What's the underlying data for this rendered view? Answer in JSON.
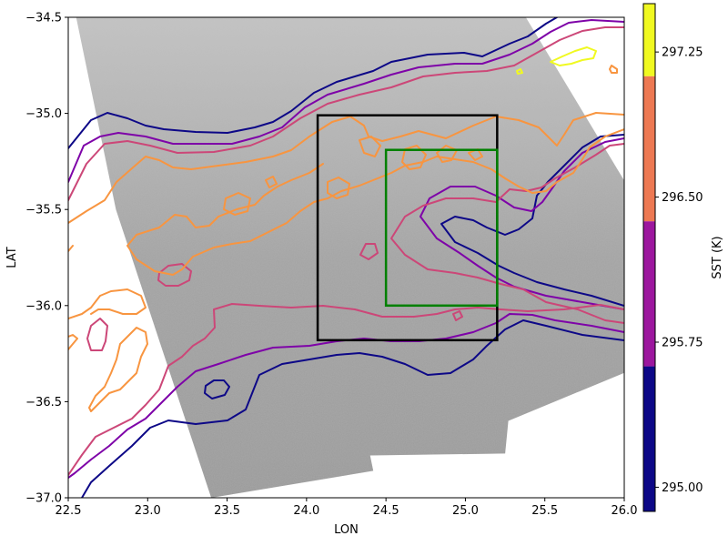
{
  "chart_data": {
    "type": "contour",
    "background": "grayscale SAR image",
    "xlabel": "LON",
    "ylabel": "LAT",
    "xlim": [
      22.5,
      26.0
    ],
    "ylim": [
      -37.0,
      -34.5
    ],
    "xticks": [
      "22.5",
      "23.0",
      "23.5",
      "24.0",
      "24.5",
      "25.0",
      "25.5",
      "26.0"
    ],
    "yticks": [
      "-34.5",
      "-35.0",
      "-35.5",
      "-36.0",
      "-36.5",
      "-37.0"
    ],
    "colorbar": {
      "label": "SST (K)",
      "ticks": [
        "295.00",
        "295.75",
        "296.50",
        "297.25"
      ],
      "levels": [
        294.875,
        295.0,
        295.25,
        295.5,
        295.75,
        296.0,
        296.25,
        296.5,
        296.75,
        297.0,
        297.25,
        297.5
      ]
    },
    "contour_levels": [
      {
        "level": 295.0,
        "color": "#0d0887"
      },
      {
        "level": 295.5,
        "color": "#7e03a8"
      },
      {
        "level": 296.0,
        "color": "#cc4778"
      },
      {
        "level": 296.5,
        "color": "#f89540"
      },
      {
        "level": 297.25,
        "color": "#f0f921"
      }
    ],
    "boxes": [
      {
        "name": "outer",
        "color": "#000000",
        "lon": [
          24.07,
          25.2
        ],
        "lat": [
          -36.18,
          -35.01
        ]
      },
      {
        "name": "inner",
        "color": "#008000",
        "lon": [
          24.5,
          25.2
        ],
        "lat": [
          -36.0,
          -35.19
        ]
      }
    ],
    "swath_corners_lonlat": [
      [
        22.55,
        -34.5
      ],
      [
        25.38,
        -34.5
      ],
      [
        26.0,
        -35.35
      ],
      [
        26.0,
        -36.35
      ],
      [
        25.27,
        -36.6
      ],
      [
        25.25,
        -36.77
      ],
      [
        24.4,
        -36.78
      ],
      [
        24.42,
        -36.86
      ],
      [
        23.4,
        -37.0
      ],
      [
        22.8,
        -35.5
      ]
    ]
  }
}
